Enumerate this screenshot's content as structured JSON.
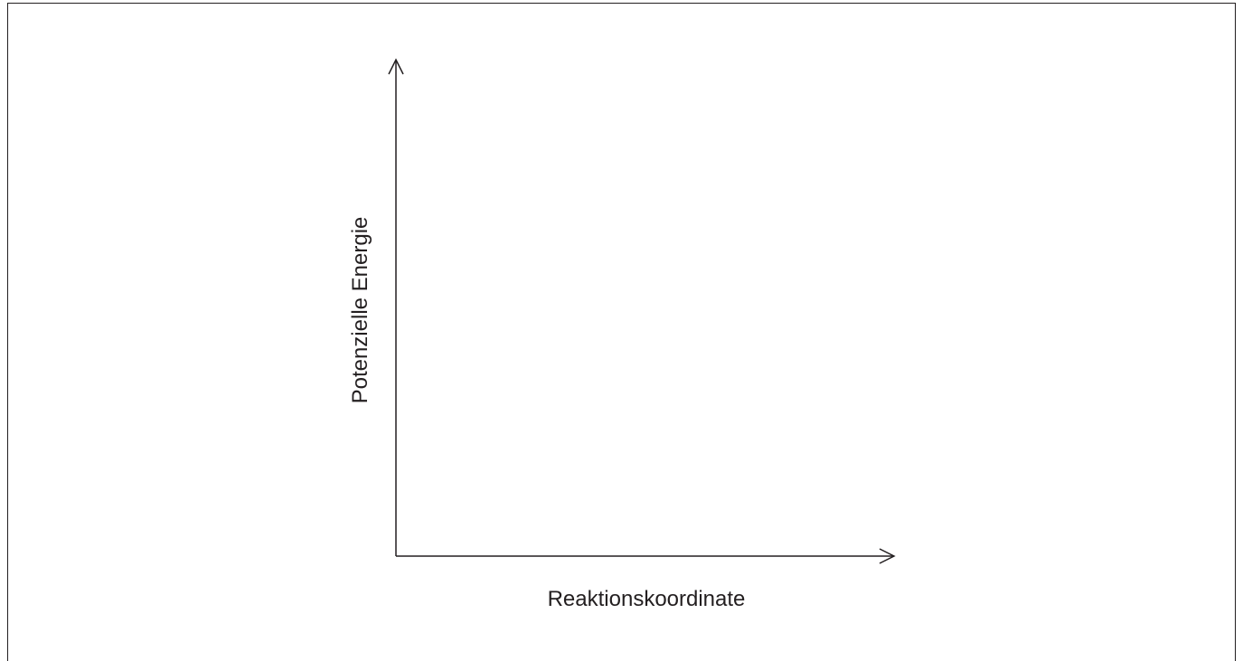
{
  "axes": {
    "y_label": "Potenzielle Energie",
    "x_label": "Reaktionskoordinate"
  }
}
